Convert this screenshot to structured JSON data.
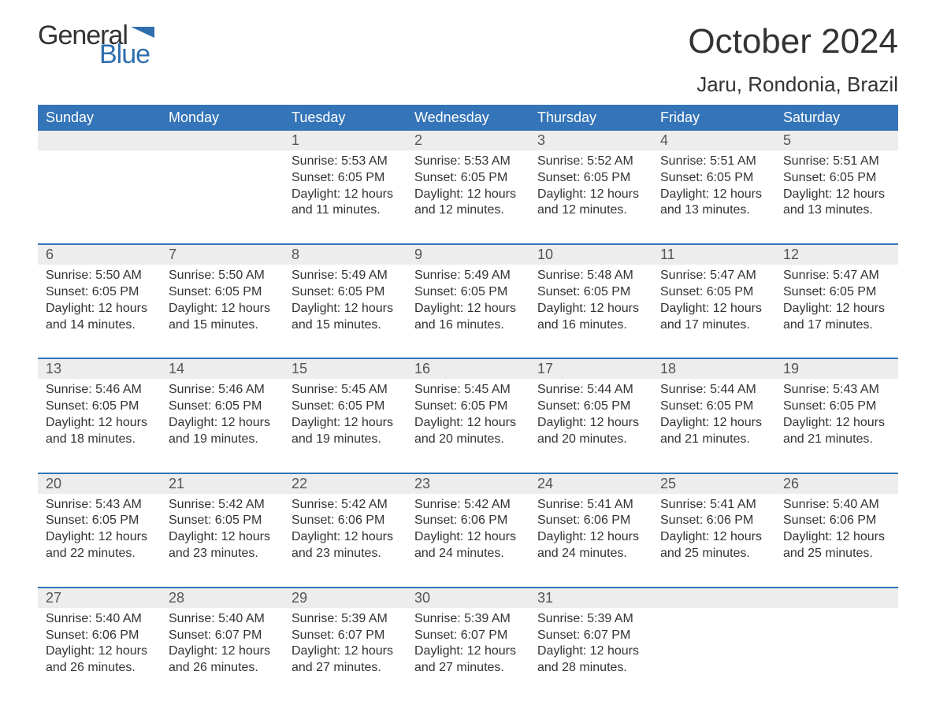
{
  "logo": {
    "general": "General",
    "blue": "Blue",
    "flag_color": "#2f6fae"
  },
  "title": "October 2024",
  "location": "Jaru, Rondonia, Brazil",
  "colors": {
    "header_bg": "#3474b8",
    "header_text": "#ffffff",
    "daynum_bg": "#ededed",
    "border": "#3474b8",
    "text": "#333333",
    "logo_blue": "#2f6fae"
  },
  "typography": {
    "title_fontsize": 44,
    "location_fontsize": 26,
    "logo_fontsize": 34,
    "header_fontsize": 18,
    "daynum_fontsize": 18,
    "details_fontsize": 16
  },
  "weekdays": [
    "Sunday",
    "Monday",
    "Tuesday",
    "Wednesday",
    "Thursday",
    "Friday",
    "Saturday"
  ],
  "weeks": [
    [
      null,
      null,
      {
        "day": "1",
        "sunrise": "5:53 AM",
        "sunset": "6:05 PM",
        "daylight": "12 hours and 11 minutes."
      },
      {
        "day": "2",
        "sunrise": "5:53 AM",
        "sunset": "6:05 PM",
        "daylight": "12 hours and 12 minutes."
      },
      {
        "day": "3",
        "sunrise": "5:52 AM",
        "sunset": "6:05 PM",
        "daylight": "12 hours and 12 minutes."
      },
      {
        "day": "4",
        "sunrise": "5:51 AM",
        "sunset": "6:05 PM",
        "daylight": "12 hours and 13 minutes."
      },
      {
        "day": "5",
        "sunrise": "5:51 AM",
        "sunset": "6:05 PM",
        "daylight": "12 hours and 13 minutes."
      }
    ],
    [
      {
        "day": "6",
        "sunrise": "5:50 AM",
        "sunset": "6:05 PM",
        "daylight": "12 hours and 14 minutes."
      },
      {
        "day": "7",
        "sunrise": "5:50 AM",
        "sunset": "6:05 PM",
        "daylight": "12 hours and 15 minutes."
      },
      {
        "day": "8",
        "sunrise": "5:49 AM",
        "sunset": "6:05 PM",
        "daylight": "12 hours and 15 minutes."
      },
      {
        "day": "9",
        "sunrise": "5:49 AM",
        "sunset": "6:05 PM",
        "daylight": "12 hours and 16 minutes."
      },
      {
        "day": "10",
        "sunrise": "5:48 AM",
        "sunset": "6:05 PM",
        "daylight": "12 hours and 16 minutes."
      },
      {
        "day": "11",
        "sunrise": "5:47 AM",
        "sunset": "6:05 PM",
        "daylight": "12 hours and 17 minutes."
      },
      {
        "day": "12",
        "sunrise": "5:47 AM",
        "sunset": "6:05 PM",
        "daylight": "12 hours and 17 minutes."
      }
    ],
    [
      {
        "day": "13",
        "sunrise": "5:46 AM",
        "sunset": "6:05 PM",
        "daylight": "12 hours and 18 minutes."
      },
      {
        "day": "14",
        "sunrise": "5:46 AM",
        "sunset": "6:05 PM",
        "daylight": "12 hours and 19 minutes."
      },
      {
        "day": "15",
        "sunrise": "5:45 AM",
        "sunset": "6:05 PM",
        "daylight": "12 hours and 19 minutes."
      },
      {
        "day": "16",
        "sunrise": "5:45 AM",
        "sunset": "6:05 PM",
        "daylight": "12 hours and 20 minutes."
      },
      {
        "day": "17",
        "sunrise": "5:44 AM",
        "sunset": "6:05 PM",
        "daylight": "12 hours and 20 minutes."
      },
      {
        "day": "18",
        "sunrise": "5:44 AM",
        "sunset": "6:05 PM",
        "daylight": "12 hours and 21 minutes."
      },
      {
        "day": "19",
        "sunrise": "5:43 AM",
        "sunset": "6:05 PM",
        "daylight": "12 hours and 21 minutes."
      }
    ],
    [
      {
        "day": "20",
        "sunrise": "5:43 AM",
        "sunset": "6:05 PM",
        "daylight": "12 hours and 22 minutes."
      },
      {
        "day": "21",
        "sunrise": "5:42 AM",
        "sunset": "6:05 PM",
        "daylight": "12 hours and 23 minutes."
      },
      {
        "day": "22",
        "sunrise": "5:42 AM",
        "sunset": "6:06 PM",
        "daylight": "12 hours and 23 minutes."
      },
      {
        "day": "23",
        "sunrise": "5:42 AM",
        "sunset": "6:06 PM",
        "daylight": "12 hours and 24 minutes."
      },
      {
        "day": "24",
        "sunrise": "5:41 AM",
        "sunset": "6:06 PM",
        "daylight": "12 hours and 24 minutes."
      },
      {
        "day": "25",
        "sunrise": "5:41 AM",
        "sunset": "6:06 PM",
        "daylight": "12 hours and 25 minutes."
      },
      {
        "day": "26",
        "sunrise": "5:40 AM",
        "sunset": "6:06 PM",
        "daylight": "12 hours and 25 minutes."
      }
    ],
    [
      {
        "day": "27",
        "sunrise": "5:40 AM",
        "sunset": "6:06 PM",
        "daylight": "12 hours and 26 minutes."
      },
      {
        "day": "28",
        "sunrise": "5:40 AM",
        "sunset": "6:07 PM",
        "daylight": "12 hours and 26 minutes."
      },
      {
        "day": "29",
        "sunrise": "5:39 AM",
        "sunset": "6:07 PM",
        "daylight": "12 hours and 27 minutes."
      },
      {
        "day": "30",
        "sunrise": "5:39 AM",
        "sunset": "6:07 PM",
        "daylight": "12 hours and 27 minutes."
      },
      {
        "day": "31",
        "sunrise": "5:39 AM",
        "sunset": "6:07 PM",
        "daylight": "12 hours and 28 minutes."
      },
      null,
      null
    ]
  ],
  "labels": {
    "sunrise": "Sunrise:",
    "sunset": "Sunset:",
    "daylight": "Daylight:"
  }
}
